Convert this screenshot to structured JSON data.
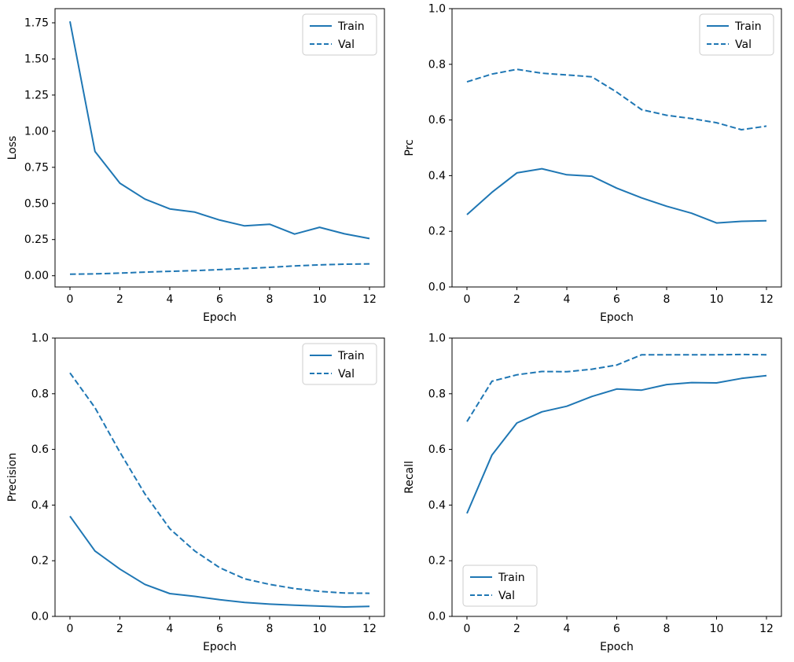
{
  "figure": {
    "background": "#ffffff",
    "line_color": "#1f77b4",
    "series_labels": [
      "Train",
      "Val"
    ]
  },
  "chart_data": [
    {
      "type": "line",
      "title": "",
      "xlabel": "Epoch",
      "ylabel": "Loss",
      "legend_position": "upper-right",
      "legend_entries": [
        "Train",
        "Val"
      ],
      "x": [
        0,
        1,
        2,
        3,
        4,
        5,
        6,
        7,
        8,
        9,
        10,
        11,
        12
      ],
      "xlim": [
        -0.6,
        12.6
      ],
      "ylim": [
        -0.078,
        1.848
      ],
      "xticks": [
        0,
        2,
        4,
        6,
        8,
        10,
        12
      ],
      "xtick_labels": [
        "0",
        "2",
        "4",
        "6",
        "8",
        "10",
        "12"
      ],
      "yticks": [
        0.0,
        0.25,
        0.5,
        0.75,
        1.0,
        1.25,
        1.5,
        1.75
      ],
      "ytick_labels": [
        "0.00",
        "0.25",
        "0.50",
        "0.75",
        "1.00",
        "1.25",
        "1.50",
        "1.75"
      ],
      "grid": false,
      "series": [
        {
          "name": "Train",
          "style": "solid",
          "values": [
            1.76,
            0.86,
            0.64,
            0.53,
            0.462,
            0.44,
            0.385,
            0.345,
            0.356,
            0.288,
            0.335,
            0.29,
            0.257
          ]
        },
        {
          "name": "Val",
          "style": "dashed",
          "values": [
            0.01,
            0.013,
            0.018,
            0.025,
            0.03,
            0.035,
            0.042,
            0.05,
            0.058,
            0.068,
            0.075,
            0.08,
            0.082
          ]
        }
      ]
    },
    {
      "type": "line",
      "title": "",
      "xlabel": "Epoch",
      "ylabel": "Prc",
      "legend_position": "upper-right",
      "legend_entries": [
        "Train",
        "Val"
      ],
      "x": [
        0,
        1,
        2,
        3,
        4,
        5,
        6,
        7,
        8,
        9,
        10,
        11,
        12
      ],
      "xlim": [
        -0.6,
        12.6
      ],
      "ylim": [
        0.0,
        1.0
      ],
      "xticks": [
        0,
        2,
        4,
        6,
        8,
        10,
        12
      ],
      "xtick_labels": [
        "0",
        "2",
        "4",
        "6",
        "8",
        "10",
        "12"
      ],
      "yticks": [
        0.0,
        0.2,
        0.4,
        0.6,
        0.8,
        1.0
      ],
      "ytick_labels": [
        "0.0",
        "0.2",
        "0.4",
        "0.6",
        "0.8",
        "1.0"
      ],
      "grid": false,
      "series": [
        {
          "name": "Train",
          "style": "solid",
          "values": [
            0.26,
            0.34,
            0.41,
            0.425,
            0.403,
            0.398,
            0.355,
            0.32,
            0.29,
            0.265,
            0.23,
            0.236,
            0.238
          ]
        },
        {
          "name": "Val",
          "style": "dashed",
          "values": [
            0.737,
            0.765,
            0.782,
            0.768,
            0.762,
            0.755,
            0.7,
            0.637,
            0.617,
            0.605,
            0.59,
            0.565,
            0.578
          ]
        }
      ]
    },
    {
      "type": "line",
      "title": "",
      "xlabel": "Epoch",
      "ylabel": "Precision",
      "legend_position": "upper-right",
      "legend_entries": [
        "Train",
        "Val"
      ],
      "x": [
        0,
        1,
        2,
        3,
        4,
        5,
        6,
        7,
        8,
        9,
        10,
        11,
        12
      ],
      "xlim": [
        -0.6,
        12.6
      ],
      "ylim": [
        0.0,
        1.0
      ],
      "xticks": [
        0,
        2,
        4,
        6,
        8,
        10,
        12
      ],
      "xtick_labels": [
        "0",
        "2",
        "4",
        "6",
        "8",
        "10",
        "12"
      ],
      "yticks": [
        0.0,
        0.2,
        0.4,
        0.6,
        0.8,
        1.0
      ],
      "ytick_labels": [
        "0.0",
        "0.2",
        "0.4",
        "0.6",
        "0.8",
        "1.0"
      ],
      "grid": false,
      "series": [
        {
          "name": "Train",
          "style": "solid",
          "values": [
            0.36,
            0.235,
            0.17,
            0.115,
            0.082,
            0.072,
            0.06,
            0.05,
            0.044,
            0.04,
            0.037,
            0.034,
            0.036
          ]
        },
        {
          "name": "Val",
          "style": "dashed",
          "values": [
            0.875,
            0.75,
            0.59,
            0.44,
            0.315,
            0.235,
            0.175,
            0.135,
            0.115,
            0.1,
            0.09,
            0.084,
            0.083
          ]
        }
      ]
    },
    {
      "type": "line",
      "title": "",
      "xlabel": "Epoch",
      "ylabel": "Recall",
      "legend_position": "lower-left",
      "legend_entries": [
        "Train",
        "Val"
      ],
      "x": [
        0,
        1,
        2,
        3,
        4,
        5,
        6,
        7,
        8,
        9,
        10,
        11,
        12
      ],
      "xlim": [
        -0.6,
        12.6
      ],
      "ylim": [
        0.0,
        1.0
      ],
      "xticks": [
        0,
        2,
        4,
        6,
        8,
        10,
        12
      ],
      "xtick_labels": [
        "0",
        "2",
        "4",
        "6",
        "8",
        "10",
        "12"
      ],
      "yticks": [
        0.0,
        0.2,
        0.4,
        0.6,
        0.8,
        1.0
      ],
      "ytick_labels": [
        "0.0",
        "0.2",
        "0.4",
        "0.6",
        "0.8",
        "1.0"
      ],
      "grid": false,
      "series": [
        {
          "name": "Train",
          "style": "solid",
          "values": [
            0.37,
            0.58,
            0.695,
            0.735,
            0.755,
            0.79,
            0.817,
            0.813,
            0.833,
            0.84,
            0.839,
            0.855,
            0.865
          ]
        },
        {
          "name": "Val",
          "style": "dashed",
          "values": [
            0.7,
            0.845,
            0.868,
            0.88,
            0.879,
            0.888,
            0.903,
            0.94,
            0.94,
            0.94,
            0.94,
            0.941,
            0.94
          ]
        }
      ]
    }
  ]
}
